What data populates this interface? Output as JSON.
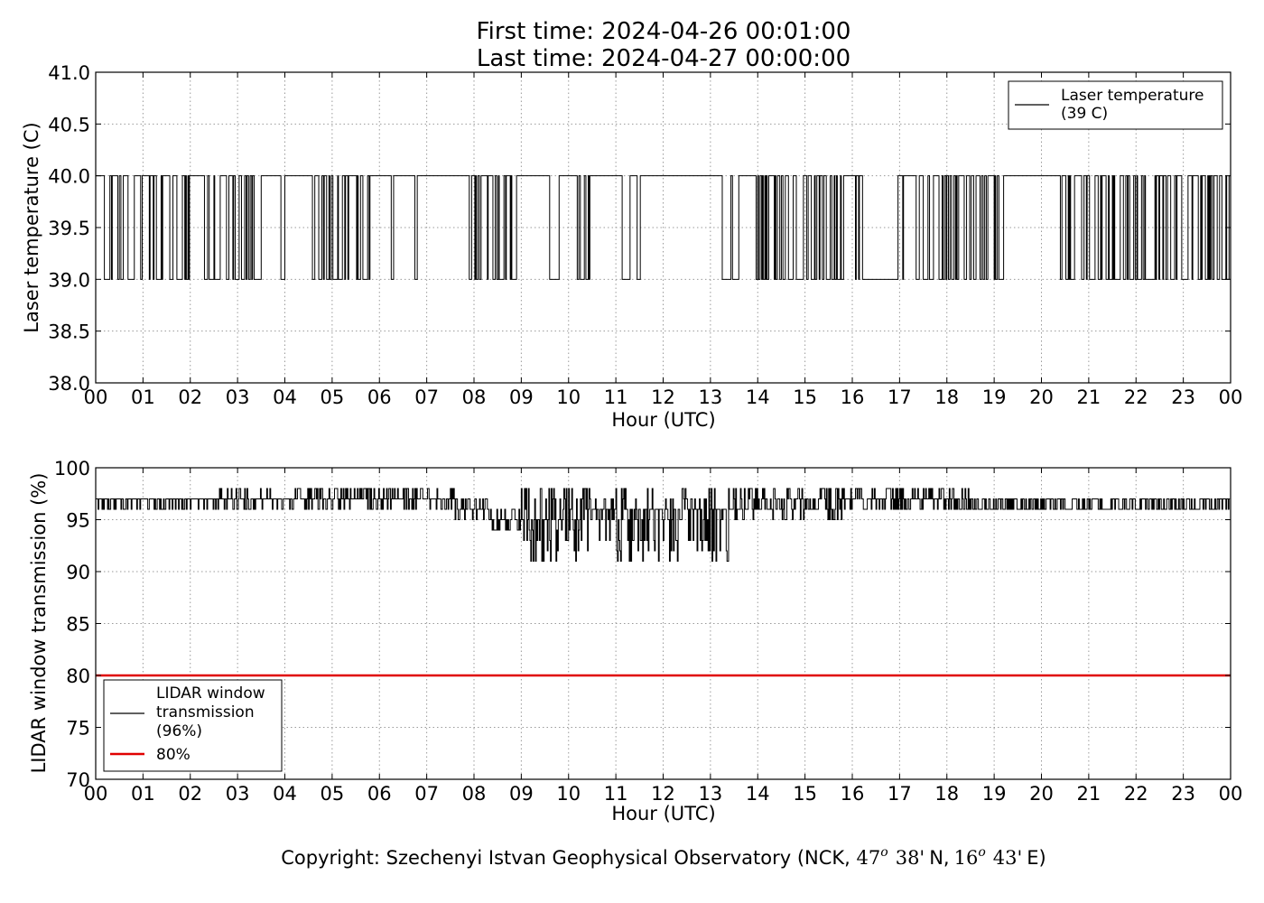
{
  "header": {
    "title_line1": "First time: 2024-04-26 00:01:00",
    "title_line2": "Last time: 2024-04-27 00:00:00"
  },
  "footer": {
    "copyright_prefix": "Copyright: Szechenyi Istvan Geophysical Observatory (NCK, ",
    "lat_deg": "47",
    "lat_deg_sup": "o",
    "lat_min": "38'",
    "lat_dir": "N,",
    "lon_deg": "16",
    "lon_deg_sup": "o",
    "lon_min": "43'",
    "lon_dir": "E)"
  },
  "colors": {
    "series_line": "#000000",
    "threshold_line": "#e00000",
    "grid": "#9a9a9a"
  },
  "chart_data": [
    {
      "type": "line",
      "title": "",
      "xlabel": "Hour (UTC)",
      "ylabel": "Laser temperature (C)",
      "xlim": [
        0,
        24
      ],
      "ylim": [
        38.0,
        41.0
      ],
      "x_tick_labels": [
        "00",
        "01",
        "02",
        "03",
        "04",
        "05",
        "06",
        "07",
        "08",
        "09",
        "10",
        "11",
        "12",
        "13",
        "14",
        "15",
        "16",
        "17",
        "18",
        "19",
        "20",
        "21",
        "22",
        "23",
        "00"
      ],
      "y_ticks": [
        38.0,
        38.5,
        39.0,
        39.5,
        40.0,
        40.5,
        41.0
      ],
      "y_tick_labels": [
        "38.0",
        "38.5",
        "39.0",
        "39.5",
        "40.0",
        "40.5",
        "41.0"
      ],
      "grid": true,
      "legend": {
        "placement": "top-right",
        "entries": [
          {
            "line1": "Laser temperature",
            "line2": "(39 C)"
          }
        ]
      },
      "series": [
        {
          "name": "Laser temperature",
          "segments": [
            {
              "x": [
                0.0,
                0.35
              ],
              "y_alt": [
                39.0,
                40.0
              ],
              "density": 0.55
            },
            {
              "x": [
                0.35,
                0.45
              ],
              "y": 40.0
            },
            {
              "x": [
                0.45,
                2.0
              ],
              "y_alt": [
                39.0,
                40.0
              ],
              "density": 0.6
            },
            {
              "x": [
                2.0,
                2.2
              ],
              "y": 40.0
            },
            {
              "x": [
                2.2,
                3.5
              ],
              "y_alt": [
                39.0,
                40.0
              ],
              "density": 0.6
            },
            {
              "x": [
                3.5,
                3.8
              ],
              "y": 40.0
            },
            {
              "x": [
                3.8,
                4.2
              ],
              "y_alt": [
                39.0,
                40.0
              ],
              "density": 0.35
            },
            {
              "x": [
                4.2,
                4.5
              ],
              "y": 40.0
            },
            {
              "x": [
                4.5,
                5.8
              ],
              "y_alt": [
                39.0,
                40.0
              ],
              "density": 0.45
            },
            {
              "x": [
                5.8,
                6.25
              ],
              "y": 40.0
            },
            {
              "x": [
                6.25,
                6.3
              ],
              "y": 39.0
            },
            {
              "x": [
                6.3,
                6.75
              ],
              "y": 40.0
            },
            {
              "x": [
                6.75,
                6.8
              ],
              "y": 39.0
            },
            {
              "x": [
                6.8,
                7.9
              ],
              "y": 40.0
            },
            {
              "x": [
                7.9,
                7.95
              ],
              "y": 39.0
            },
            {
              "x": [
                7.95,
                8.0
              ],
              "y": 40.0
            },
            {
              "x": [
                8.0,
                9.1
              ],
              "y_alt": [
                39.0,
                40.0
              ],
              "density": 0.55
            },
            {
              "x": [
                9.1,
                9.6
              ],
              "y": 40.0
            },
            {
              "x": [
                9.6,
                9.8
              ],
              "y": 39.0
            },
            {
              "x": [
                9.8,
                10.15
              ],
              "y": 40.0
            },
            {
              "x": [
                10.15,
                10.45
              ],
              "y_alt": [
                39.0,
                40.0
              ],
              "density": 0.5
            },
            {
              "x": [
                10.45,
                10.8
              ],
              "y": 40.0
            },
            {
              "x": [
                10.8,
                11.6
              ],
              "y_alt": [
                39.0,
                40.0
              ],
              "density": 0.3
            },
            {
              "x": [
                11.6,
                12.9
              ],
              "y": 40.0
            },
            {
              "x": [
                12.9,
                13.6
              ],
              "y_alt": [
                39.0,
                40.0
              ],
              "density": 0.25
            },
            {
              "x": [
                13.6,
                13.9
              ],
              "y": 40.0
            },
            {
              "x": [
                13.9,
                16.25
              ],
              "y_alt": [
                39.0,
                40.0
              ],
              "density": 0.75
            },
            {
              "x": [
                16.25,
                16.95
              ],
              "y": 39.0
            },
            {
              "x": [
                16.95,
                17.6
              ],
              "y_alt": [
                39.0,
                40.0
              ],
              "density": 0.3
            },
            {
              "x": [
                17.6,
                19.2
              ],
              "y_alt": [
                39.0,
                40.0
              ],
              "density": 0.65
            },
            {
              "x": [
                19.2,
                20.4
              ],
              "y": 40.0
            },
            {
              "x": [
                20.4,
                24.0
              ],
              "y_alt": [
                39.0,
                40.0
              ],
              "density": 0.75
            }
          ]
        }
      ]
    },
    {
      "type": "line",
      "title": "",
      "xlabel": "Hour (UTC)",
      "ylabel": "LIDAR window transmission (%)",
      "xlim": [
        0,
        24
      ],
      "ylim": [
        70,
        100
      ],
      "x_tick_labels": [
        "00",
        "01",
        "02",
        "03",
        "04",
        "05",
        "06",
        "07",
        "08",
        "09",
        "10",
        "11",
        "12",
        "13",
        "14",
        "15",
        "16",
        "17",
        "18",
        "19",
        "20",
        "21",
        "22",
        "23",
        "00"
      ],
      "y_ticks": [
        70,
        75,
        80,
        85,
        90,
        95,
        100
      ],
      "y_tick_labels": [
        "70",
        "75",
        "80",
        "85",
        "90",
        "95",
        "100"
      ],
      "grid": true,
      "legend": {
        "placement": "bottom-left",
        "entries": [
          {
            "line1": "LIDAR window",
            "line2": "transmission",
            "line3": "(96%)"
          },
          {
            "line1": "80%"
          }
        ]
      },
      "threshold": {
        "y": 80
      },
      "series": [
        {
          "name": "LIDAR window transmission",
          "segments": [
            {
              "x": [
                0.0,
                2.6
              ],
              "base": 97,
              "dips": [
                96
              ],
              "density": 0.2
            },
            {
              "x": [
                2.6,
                7.6
              ],
              "base": 97,
              "dips": [
                96,
                98
              ],
              "density": 0.45
            },
            {
              "x": [
                7.6,
                8.3
              ],
              "base": 96,
              "dips": [
                95,
                97
              ],
              "density": 0.5
            },
            {
              "x": [
                8.3,
                9.0
              ],
              "base": 95,
              "dips": [
                94,
                96
              ],
              "density": 0.6
            },
            {
              "x": [
                9.0,
                10.5
              ],
              "base": 95,
              "dips": [
                91,
                92,
                93,
                94,
                96,
                97,
                98
              ],
              "density": 0.75
            },
            {
              "x": [
                10.5,
                11.0
              ],
              "base": 96,
              "dips": [
                93,
                95,
                97
              ],
              "density": 0.6
            },
            {
              "x": [
                11.0,
                13.4
              ],
              "base": 96,
              "dips": [
                91,
                92,
                93,
                95,
                97,
                98
              ],
              "density": 0.7
            },
            {
              "x": [
                13.4,
                15.8
              ],
              "base": 96,
              "dips": [
                95,
                97,
                98
              ],
              "density": 0.6
            },
            {
              "x": [
                15.8,
                18.5
              ],
              "base": 97,
              "dips": [
                96,
                98
              ],
              "density": 0.5
            },
            {
              "x": [
                18.5,
                24.0
              ],
              "base": 96,
              "dips": [
                97
              ],
              "density": 0.5
            }
          ]
        }
      ]
    }
  ]
}
